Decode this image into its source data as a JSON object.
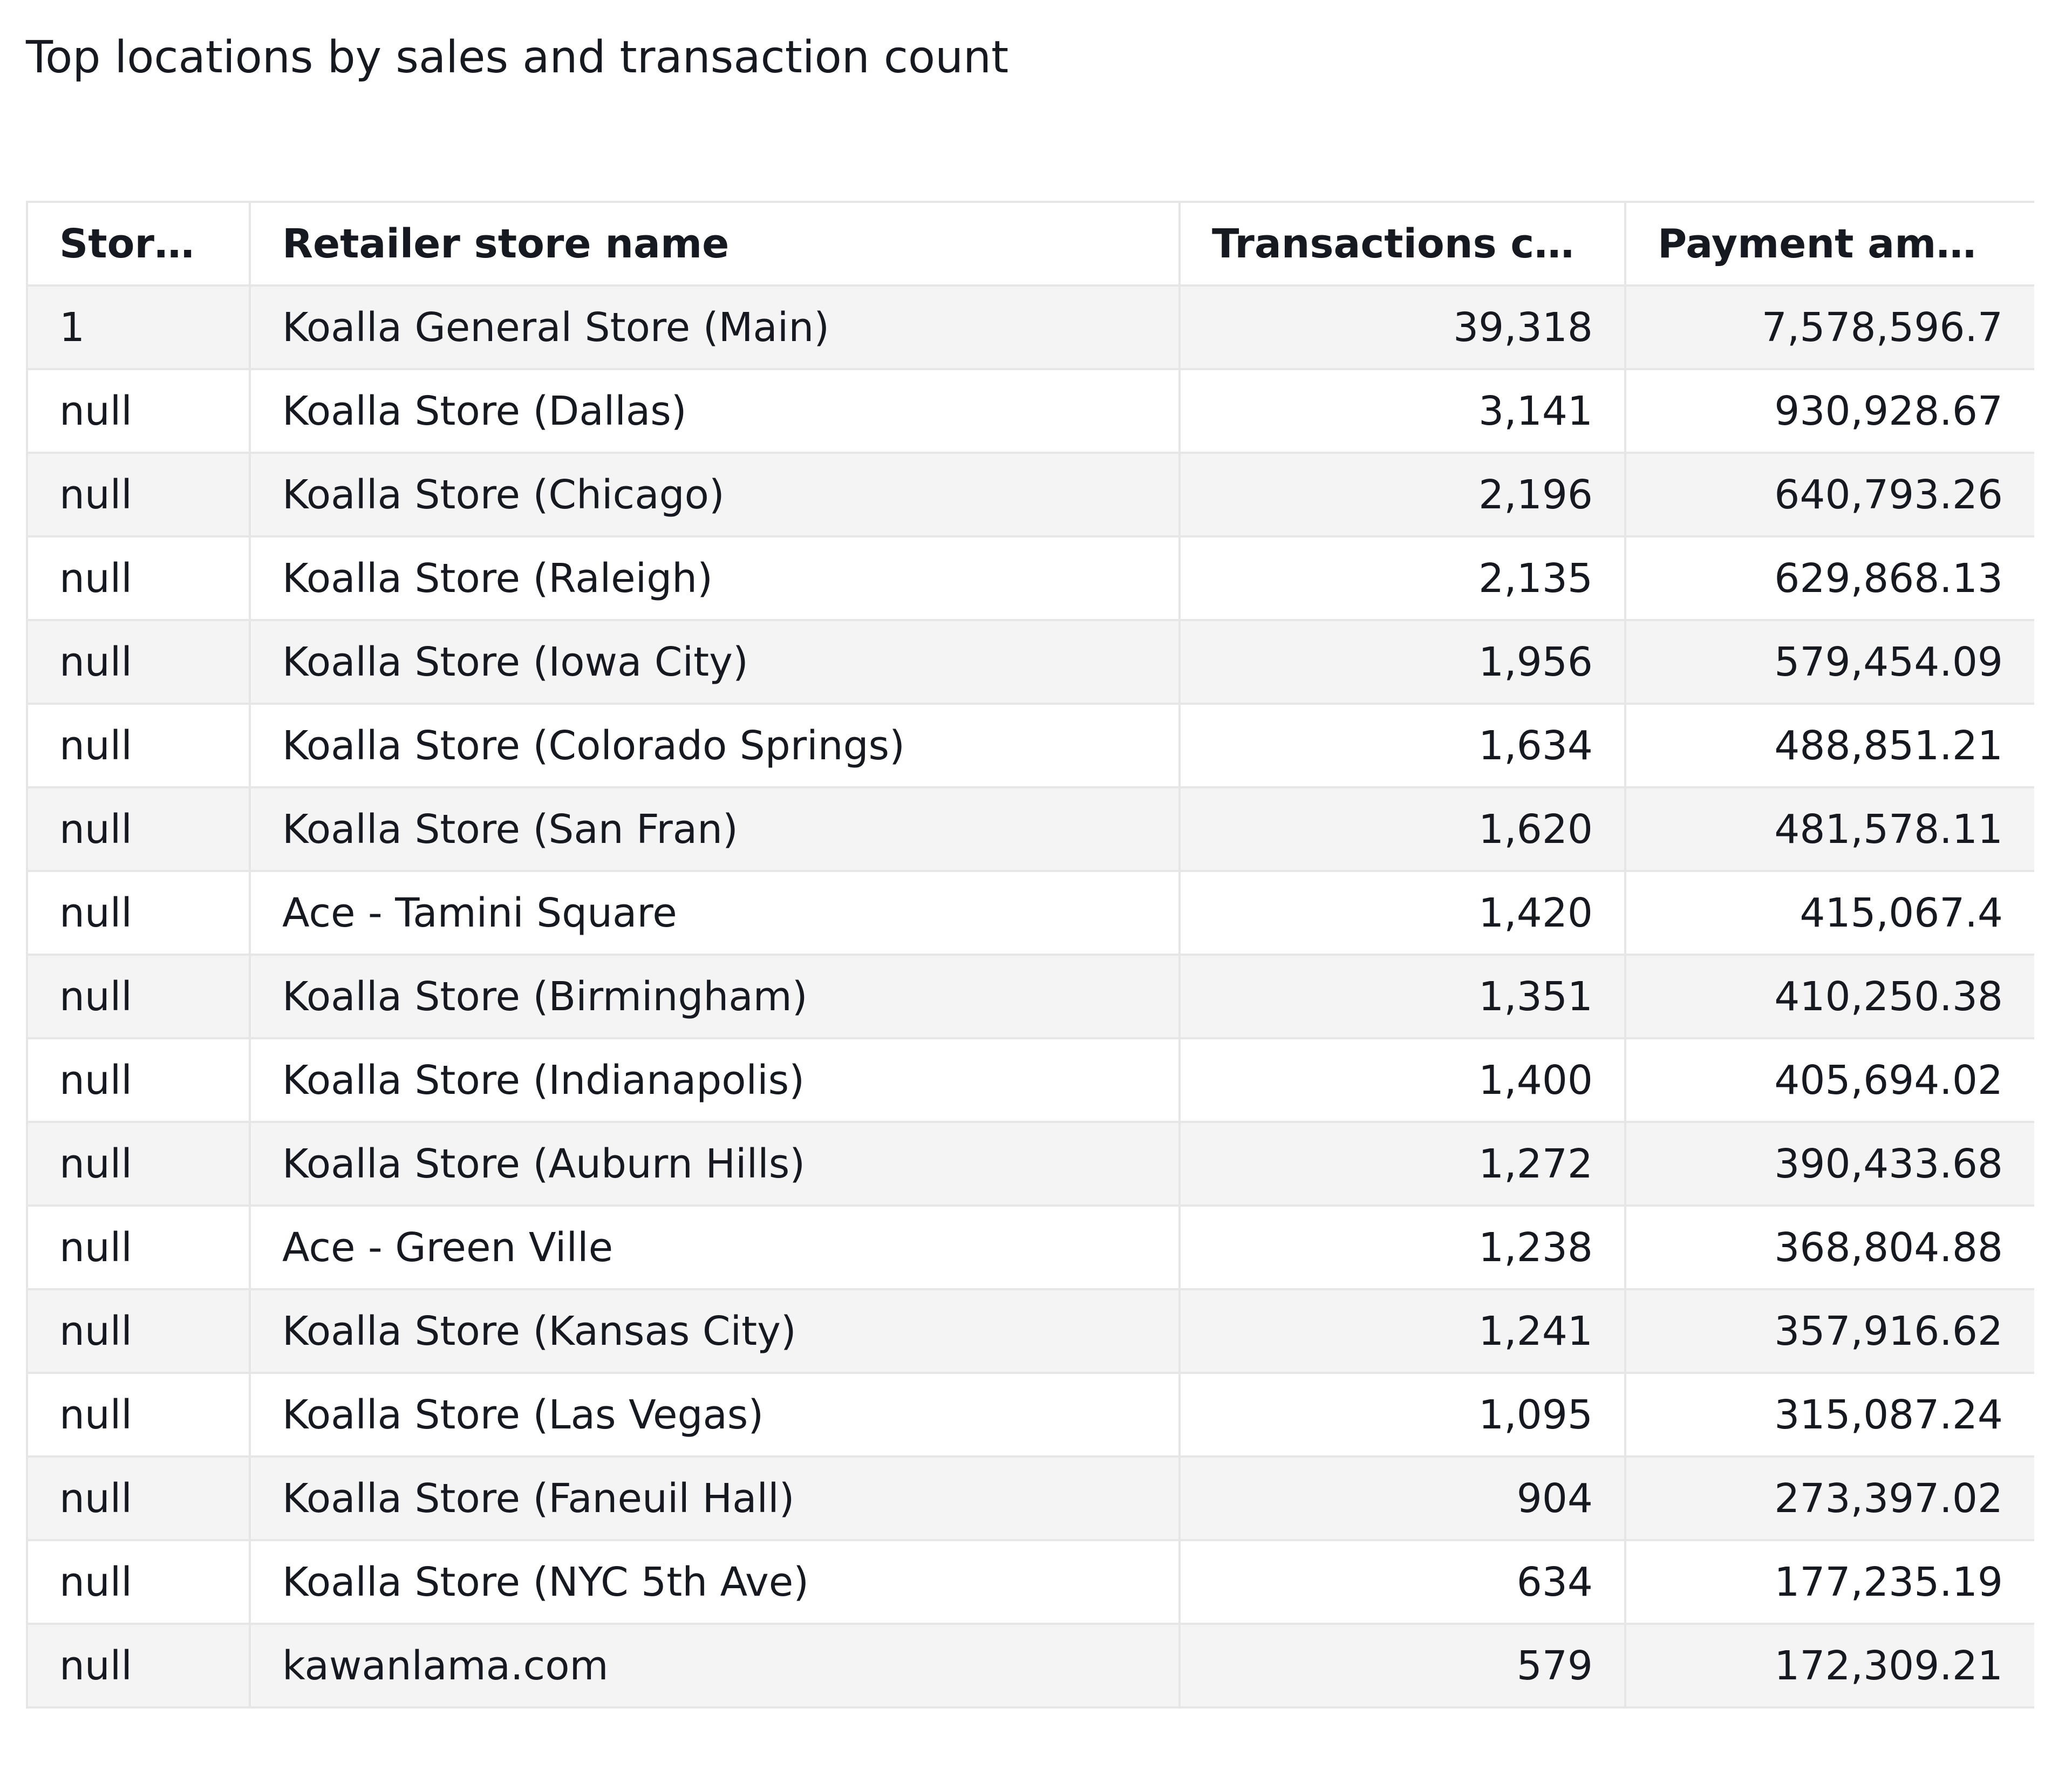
{
  "title": "Top locations by sales and transaction count",
  "table": {
    "columns": [
      "Store...",
      "Retailer store name",
      "Transactions count",
      "Payment amount"
    ],
    "rows": [
      [
        "1",
        "Koalla General Store (Main)",
        "39,318",
        "7,578,596.7"
      ],
      [
        "null",
        "Koalla Store (Dallas)",
        "3,141",
        "930,928.67"
      ],
      [
        "null",
        "Koalla Store (Chicago)",
        "2,196",
        "640,793.26"
      ],
      [
        "null",
        "Koalla Store (Raleigh)",
        "2,135",
        "629,868.13"
      ],
      [
        "null",
        "Koalla Store (Iowa City)",
        "1,956",
        "579,454.09"
      ],
      [
        "null",
        "Koalla Store (Colorado Springs)",
        "1,634",
        "488,851.21"
      ],
      [
        "null",
        "Koalla Store (San Fran)",
        "1,620",
        "481,578.11"
      ],
      [
        "null",
        "Ace - Tamini Square",
        "1,420",
        "415,067.4"
      ],
      [
        "null",
        "Koalla Store (Birmingham)",
        "1,351",
        "410,250.38"
      ],
      [
        "null",
        "Koalla Store (Indianapolis)",
        "1,400",
        "405,694.02"
      ],
      [
        "null",
        "Koalla Store (Auburn Hills)",
        "1,272",
        "390,433.68"
      ],
      [
        "null",
        "Ace - Green Ville",
        "1,238",
        "368,804.88"
      ],
      [
        "null",
        "Koalla Store (Kansas City)",
        "1,241",
        "357,916.62"
      ],
      [
        "null",
        "Koalla Store (Las Vegas)",
        "1,095",
        "315,087.24"
      ],
      [
        "null",
        "Koalla Store (Faneuil Hall)",
        "904",
        "273,397.02"
      ],
      [
        "null",
        "Koalla Store (NYC 5th Ave)",
        "634",
        "177,235.19"
      ],
      [
        "null",
        "kawanlama.com",
        "579",
        "172,309.21"
      ]
    ]
  }
}
